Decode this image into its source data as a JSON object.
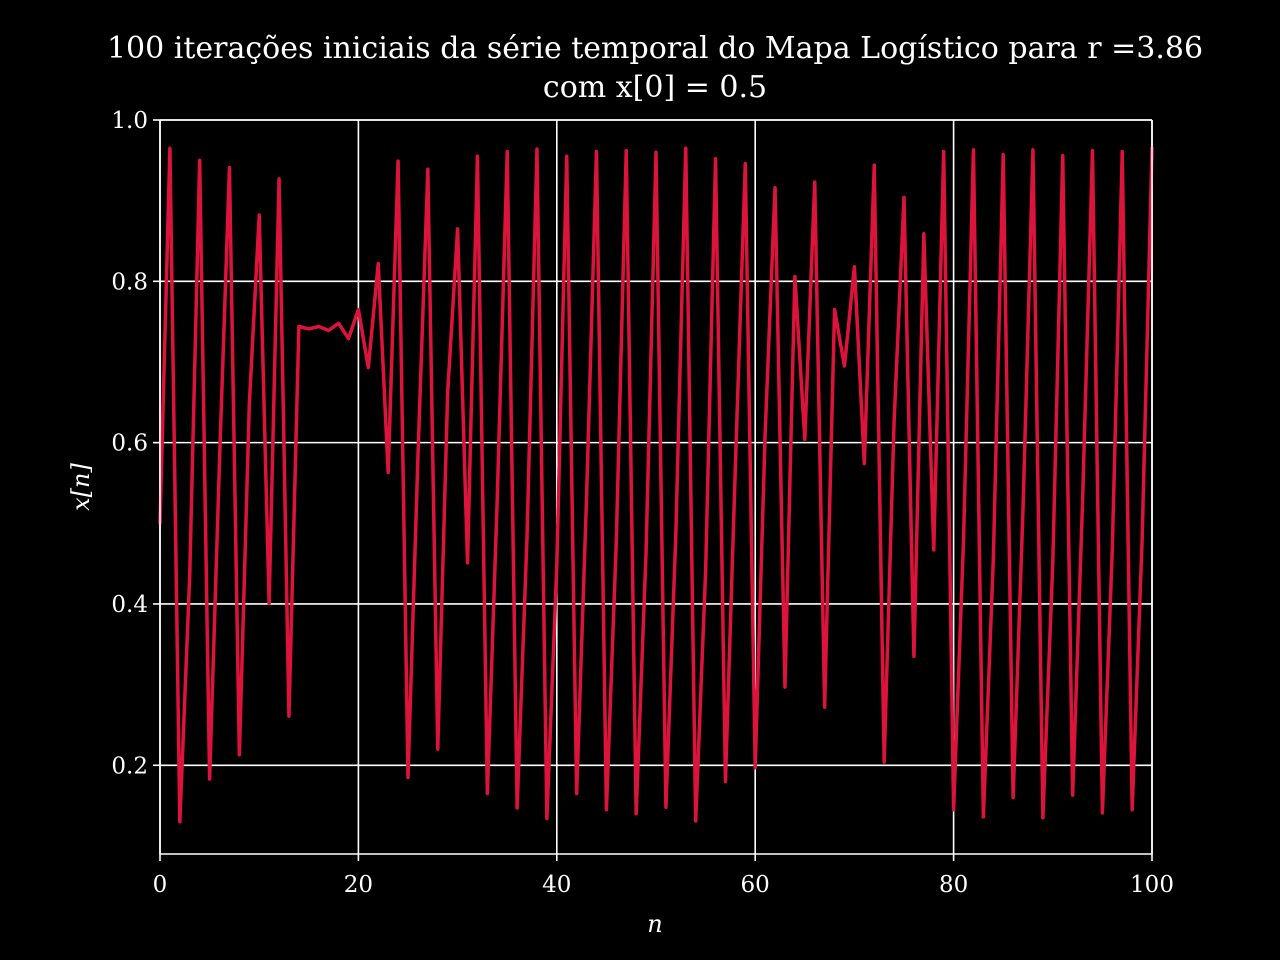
{
  "colors": {
    "background": "#000000",
    "foreground": "#ffffff",
    "series": "#dc143c"
  },
  "chart_data": {
    "type": "line",
    "title_line1": "100 iterações iniciais da série temporal do Mapa Logístico para r =3.86",
    "title_line2": "com x[0] = 0.5",
    "xlabel": "n",
    "ylabel": "x[n]",
    "xlim": [
      0,
      100
    ],
    "ylim": [
      0.09,
      1.0
    ],
    "xticks": [
      0,
      20,
      40,
      60,
      80,
      100
    ],
    "xtick_labels": [
      "0",
      "20",
      "40",
      "60",
      "80",
      "100"
    ],
    "yticks": [
      0.2,
      0.4,
      0.6,
      0.8,
      1.0
    ],
    "ytick_labels": [
      "0.2",
      "0.4",
      "0.6",
      "0.8",
      "1.0"
    ],
    "grid": true,
    "series": [
      {
        "x": [
          0,
          1,
          2,
          3,
          4,
          5,
          6,
          7,
          8,
          9,
          10,
          11,
          12,
          13,
          14,
          15,
          16,
          17,
          18,
          19,
          20,
          21,
          22,
          23,
          24,
          25,
          26,
          27,
          28,
          29,
          30,
          31,
          32,
          33,
          34,
          35,
          36,
          37,
          38,
          39,
          40,
          41,
          42,
          43,
          44,
          45,
          46,
          47,
          48,
          49,
          50,
          51,
          52,
          53,
          54,
          55,
          56,
          57,
          58,
          59,
          60,
          61,
          62,
          63,
          64,
          65,
          66,
          67,
          68,
          69,
          70,
          71,
          72,
          73,
          74,
          75,
          76,
          77,
          78,
          79,
          80,
          81,
          82,
          83,
          84,
          85,
          86,
          87,
          88,
          89,
          90,
          91,
          92,
          93,
          94,
          95,
          96,
          97,
          98,
          99,
          100
        ],
        "values": [
          0.5,
          0.965,
          0.13,
          0.437,
          0.95,
          0.183,
          0.578,
          0.941,
          0.213,
          0.647,
          0.882,
          0.401,
          0.927,
          0.261,
          0.744,
          0.741,
          0.744,
          0.739,
          0.748,
          0.729,
          0.765,
          0.693,
          0.822,
          0.563,
          0.949,
          0.185,
          0.582,
          0.939,
          0.22,
          0.663,
          0.865,
          0.451,
          0.955,
          0.165,
          0.532,
          0.961,
          0.147,
          0.484,
          0.964,
          0.134,
          0.448,
          0.955,
          0.165,
          0.532,
          0.961,
          0.145,
          0.478,
          0.962,
          0.14,
          0.465,
          0.96,
          0.148,
          0.487,
          0.965,
          0.131,
          0.44,
          0.952,
          0.18,
          0.57,
          0.946,
          0.197,
          0.611,
          0.916,
          0.297,
          0.806,
          0.604,
          0.923,
          0.272,
          0.765,
          0.695,
          0.818,
          0.574,
          0.944,
          0.204,
          0.626,
          0.904,
          0.335,
          0.859,
          0.467,
          0.961,
          0.145,
          0.479,
          0.963,
          0.136,
          0.454,
          0.957,
          0.16,
          0.519,
          0.963,
          0.135,
          0.451,
          0.956,
          0.163,
          0.527,
          0.962,
          0.141,
          0.468,
          0.961,
          0.145,
          0.478,
          0.965
        ]
      }
    ]
  }
}
